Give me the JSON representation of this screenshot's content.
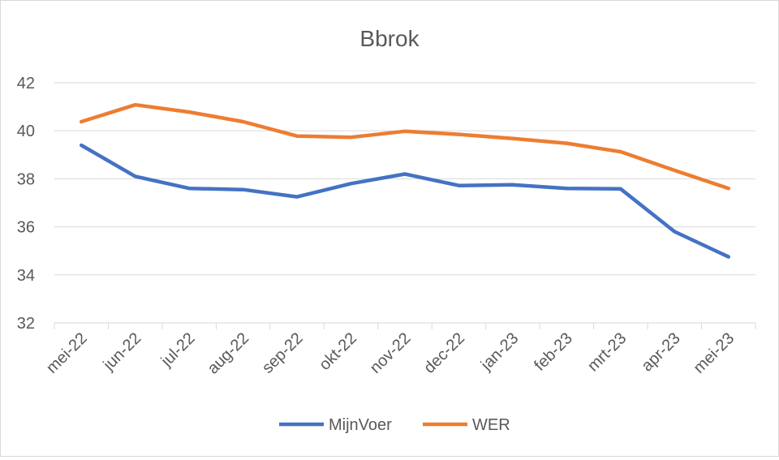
{
  "chart_data": {
    "type": "line",
    "title": "Bbrok",
    "xlabel": "",
    "ylabel": "",
    "categories": [
      "mei-22",
      "jun-22",
      "jul-22",
      "aug-22",
      "sep-22",
      "okt-22",
      "nov-22",
      "dec-22",
      "jan-23",
      "feb-23",
      "mrt-23",
      "apr-23",
      "mei-23"
    ],
    "ylim": [
      32,
      42
    ],
    "yticks": [
      32,
      34,
      36,
      38,
      40,
      42
    ],
    "ytick_labels": [
      "32",
      "34",
      "36",
      "38",
      "40",
      "42"
    ],
    "grid": true,
    "legend_position": "bottom",
    "series": [
      {
        "name": "MijnVoer",
        "color": "#4472C4",
        "values": [
          39.4,
          38.1,
          37.6,
          37.55,
          37.25,
          37.8,
          38.2,
          37.72,
          37.75,
          37.6,
          37.58,
          35.8,
          34.75
        ]
      },
      {
        "name": "WER",
        "color": "#ED7D31",
        "values": [
          40.38,
          41.08,
          40.78,
          40.38,
          39.78,
          39.73,
          39.98,
          39.85,
          39.68,
          39.48,
          39.13,
          38.35,
          37.6
        ]
      }
    ]
  }
}
